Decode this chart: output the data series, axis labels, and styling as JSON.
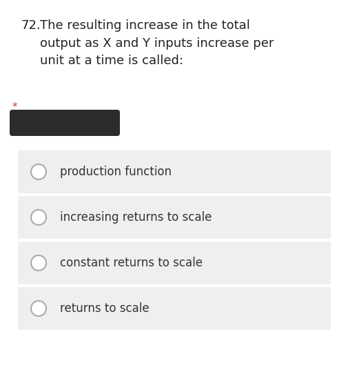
{
  "background_color": "#ffffff",
  "question_number": "72.",
  "question_text": "The resulting increase in the total\noutput as X and Y inputs increase per\nunit at a time is called:",
  "required_star": "*",
  "required_star_color": "#c0392b",
  "answer_bar_color": "#2c2c2c",
  "options": [
    "production function",
    "increasing returns to scale",
    "constant returns to scale",
    "returns to scale"
  ],
  "option_box_color": "#efefef",
  "option_text_color": "#333333",
  "circle_edge_color": "#aaaaaa",
  "font_size_question": 13.0,
  "font_size_option": 12.0,
  "fig_width": 5.06,
  "fig_height": 5.55,
  "dpi": 100
}
